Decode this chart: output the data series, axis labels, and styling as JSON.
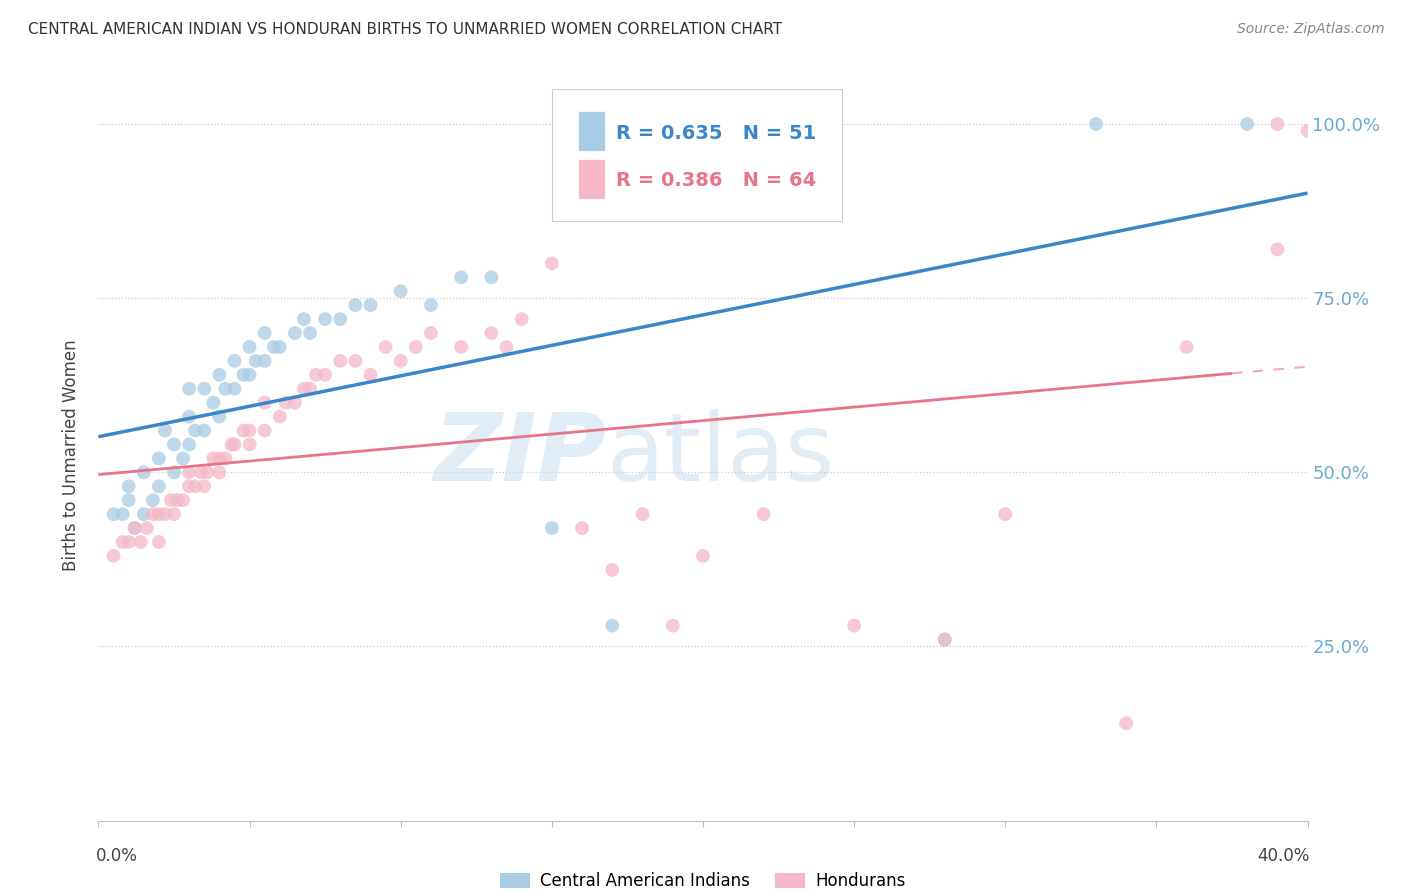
{
  "title": "CENTRAL AMERICAN INDIAN VS HONDURAN BIRTHS TO UNMARRIED WOMEN CORRELATION CHART",
  "source": "Source: ZipAtlas.com",
  "ylabel": "Births to Unmarried Women",
  "legend_label_blue": "Central American Indians",
  "legend_label_pink": "Hondurans",
  "R_blue": 0.635,
  "N_blue": 51,
  "R_pink": 0.386,
  "N_pink": 64,
  "color_blue": "#a8cce4",
  "color_pink": "#f4b8c8",
  "color_blue_line": "#3a86c8",
  "color_pink_line": "#e8748a",
  "color_right_axis": "#6aaad4",
  "background": "#ffffff",
  "xlim": [
    0,
    0.4
  ],
  "ylim": [
    0,
    1.05
  ],
  "blue_scatter_x": [
    0.005,
    0.008,
    0.01,
    0.01,
    0.012,
    0.015,
    0.015,
    0.018,
    0.02,
    0.02,
    0.022,
    0.025,
    0.025,
    0.028,
    0.03,
    0.03,
    0.03,
    0.032,
    0.035,
    0.035,
    0.038,
    0.04,
    0.04,
    0.042,
    0.045,
    0.045,
    0.048,
    0.05,
    0.05,
    0.052,
    0.055,
    0.055,
    0.058,
    0.06,
    0.065,
    0.068,
    0.07,
    0.075,
    0.08,
    0.085,
    0.09,
    0.1,
    0.11,
    0.12,
    0.13,
    0.15,
    0.17,
    0.2,
    0.28,
    0.33,
    0.38
  ],
  "blue_scatter_y": [
    0.44,
    0.44,
    0.46,
    0.48,
    0.42,
    0.44,
    0.5,
    0.46,
    0.48,
    0.52,
    0.56,
    0.5,
    0.54,
    0.52,
    0.54,
    0.58,
    0.62,
    0.56,
    0.56,
    0.62,
    0.6,
    0.58,
    0.64,
    0.62,
    0.62,
    0.66,
    0.64,
    0.64,
    0.68,
    0.66,
    0.66,
    0.7,
    0.68,
    0.68,
    0.7,
    0.72,
    0.7,
    0.72,
    0.72,
    0.74,
    0.74,
    0.76,
    0.74,
    0.78,
    0.78,
    0.42,
    0.28,
    0.9,
    0.26,
    1.0,
    1.0
  ],
  "pink_scatter_x": [
    0.005,
    0.008,
    0.01,
    0.012,
    0.014,
    0.016,
    0.018,
    0.02,
    0.02,
    0.022,
    0.024,
    0.025,
    0.026,
    0.028,
    0.03,
    0.03,
    0.032,
    0.034,
    0.035,
    0.036,
    0.038,
    0.04,
    0.04,
    0.042,
    0.044,
    0.045,
    0.048,
    0.05,
    0.05,
    0.055,
    0.055,
    0.06,
    0.062,
    0.065,
    0.068,
    0.07,
    0.072,
    0.075,
    0.08,
    0.085,
    0.09,
    0.095,
    0.1,
    0.105,
    0.11,
    0.12,
    0.13,
    0.135,
    0.14,
    0.15,
    0.16,
    0.17,
    0.18,
    0.19,
    0.2,
    0.22,
    0.25,
    0.28,
    0.3,
    0.34,
    0.36,
    0.39,
    0.39,
    0.4
  ],
  "pink_scatter_y": [
    0.38,
    0.4,
    0.4,
    0.42,
    0.4,
    0.42,
    0.44,
    0.4,
    0.44,
    0.44,
    0.46,
    0.44,
    0.46,
    0.46,
    0.48,
    0.5,
    0.48,
    0.5,
    0.48,
    0.5,
    0.52,
    0.5,
    0.52,
    0.52,
    0.54,
    0.54,
    0.56,
    0.54,
    0.56,
    0.56,
    0.6,
    0.58,
    0.6,
    0.6,
    0.62,
    0.62,
    0.64,
    0.64,
    0.66,
    0.66,
    0.64,
    0.68,
    0.66,
    0.68,
    0.7,
    0.68,
    0.7,
    0.68,
    0.72,
    0.8,
    0.42,
    0.36,
    0.44,
    0.28,
    0.38,
    0.44,
    0.28,
    0.26,
    0.44,
    0.14,
    0.68,
    1.0,
    0.82,
    0.99
  ]
}
